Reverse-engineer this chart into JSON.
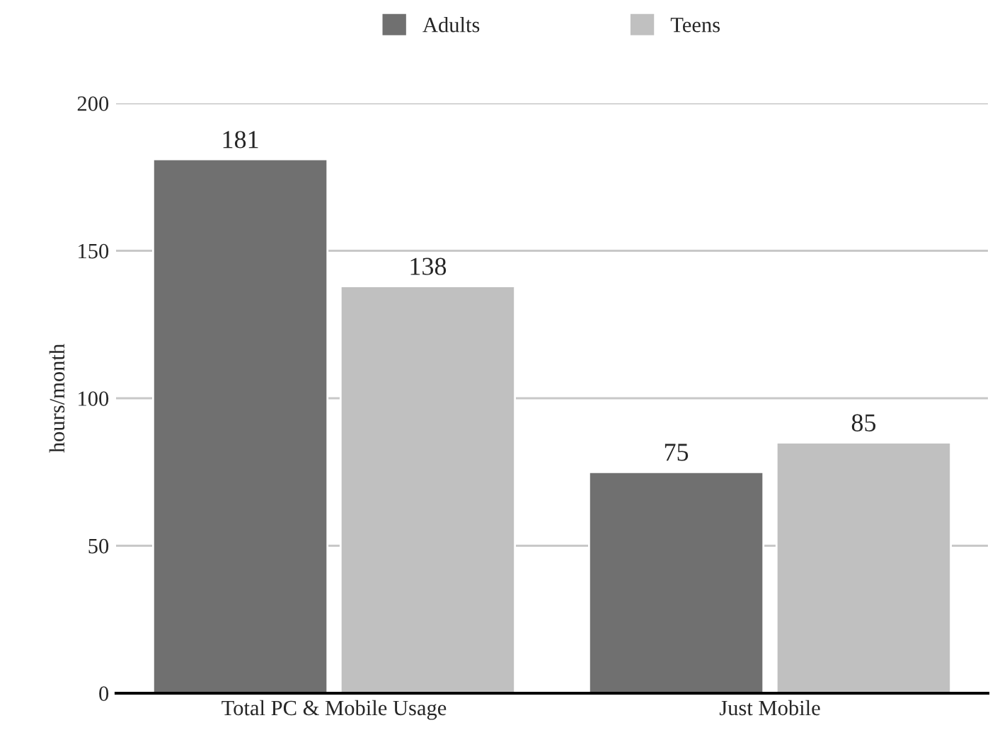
{
  "chart_data": {
    "type": "bar",
    "ylabel": "hours/month",
    "categories": [
      "Total PC & Mobile Usage",
      "Just Mobile"
    ],
    "series": [
      {
        "name": "Adults",
        "color": "#707070",
        "values": [
          181,
          75
        ]
      },
      {
        "name": "Teens",
        "color": "#c0c0c0",
        "values": [
          138,
          85
        ]
      }
    ],
    "ylim": [
      0,
      200
    ],
    "yticks": [
      0,
      50,
      100,
      150,
      200
    ],
    "grid": "y",
    "legend": "top",
    "data_labels": true
  }
}
